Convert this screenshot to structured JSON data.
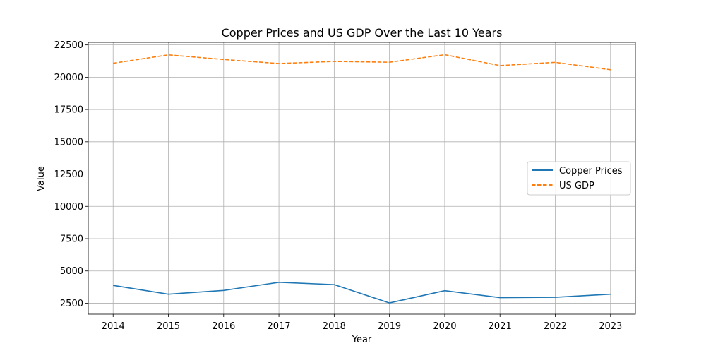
{
  "chart_data": {
    "type": "line",
    "title": "Copper Prices and US GDP Over the Last 10 Years",
    "xlabel": "Year",
    "ylabel": "Value",
    "x": [
      2014,
      2015,
      2016,
      2017,
      2018,
      2019,
      2020,
      2021,
      2022,
      2023
    ],
    "xticks": [
      "2014",
      "2015",
      "2016",
      "2017",
      "2018",
      "2019",
      "2020",
      "2021",
      "2022",
      "2023"
    ],
    "yticks": [
      2500,
      5000,
      7500,
      10000,
      12500,
      15000,
      17500,
      20000,
      22500
    ],
    "ylim": [
      1650,
      22700
    ],
    "xlim": [
      2013.55,
      2023.45
    ],
    "grid": true,
    "legend_position": "center-right",
    "series": [
      {
        "name": "Copper Prices",
        "color": "#1f77b4",
        "style": "solid",
        "values": [
          3880,
          3200,
          3490,
          4120,
          3940,
          2520,
          3470,
          2930,
          2960,
          3200
        ]
      },
      {
        "name": "US GDP",
        "color": "#ff7f0e",
        "style": "dashed",
        "values": [
          21080,
          21730,
          21370,
          21060,
          21220,
          21160,
          21740,
          20900,
          21150,
          20580
        ]
      }
    ]
  }
}
